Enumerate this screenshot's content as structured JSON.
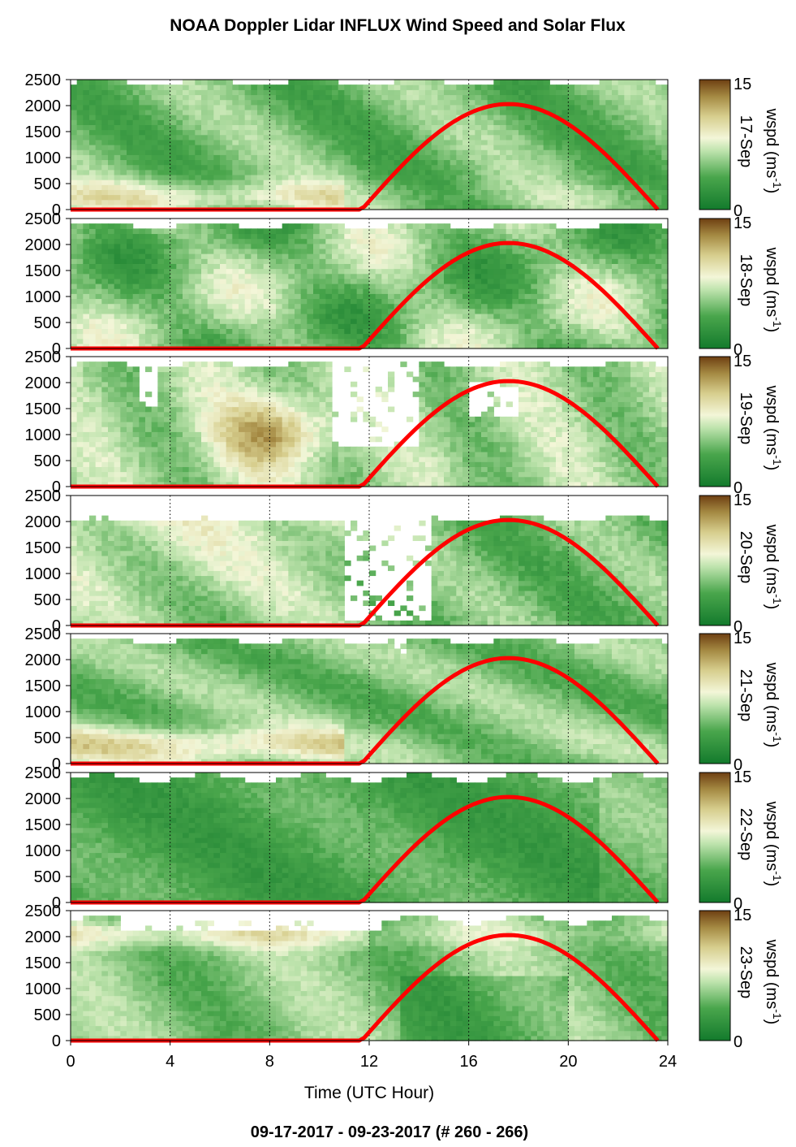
{
  "title": "NOAA Doppler Lidar INFLUX Wind Speed and Solar Flux",
  "subtitle": "09-17-2017 - 09-23-2017   (# 260 - 266)",
  "colors": {
    "low": "#1a7a2a",
    "mid": "#f3f6d8",
    "high": "#6e3f12",
    "solar_curve": "#ff0000"
  },
  "chart_data": {
    "type": "heatmap",
    "xlabel": "Time (UTC Hour)",
    "xlim": [
      0,
      24
    ],
    "xticks": [
      0,
      4,
      8,
      12,
      16,
      20,
      24
    ],
    "ylim": [
      0,
      2500
    ],
    "yticks": [
      0,
      500,
      1000,
      1500,
      2000,
      2500
    ],
    "grid": "vertical dotted at 4, 8, 12, 16, 20",
    "colorbar": {
      "label": "wspd (ms-1)",
      "label_main": "wspd (ms",
      "label_sup": "-1",
      "label_close": ")",
      "min": 0,
      "max": 15,
      "ticks": [
        15,
        0
      ]
    },
    "solar_flux": {
      "sunrise": 11.7,
      "peak_hour": 17.6,
      "sunset": 23.6,
      "peak_height": 2030
    },
    "panels": [
      {
        "date": "17-Sep"
      },
      {
        "date": "18-Sep"
      },
      {
        "date": "19-Sep"
      },
      {
        "date": "20-Sep"
      },
      {
        "date": "21-Sep"
      },
      {
        "date": "22-Sep"
      },
      {
        "date": "23-Sep"
      }
    ]
  }
}
